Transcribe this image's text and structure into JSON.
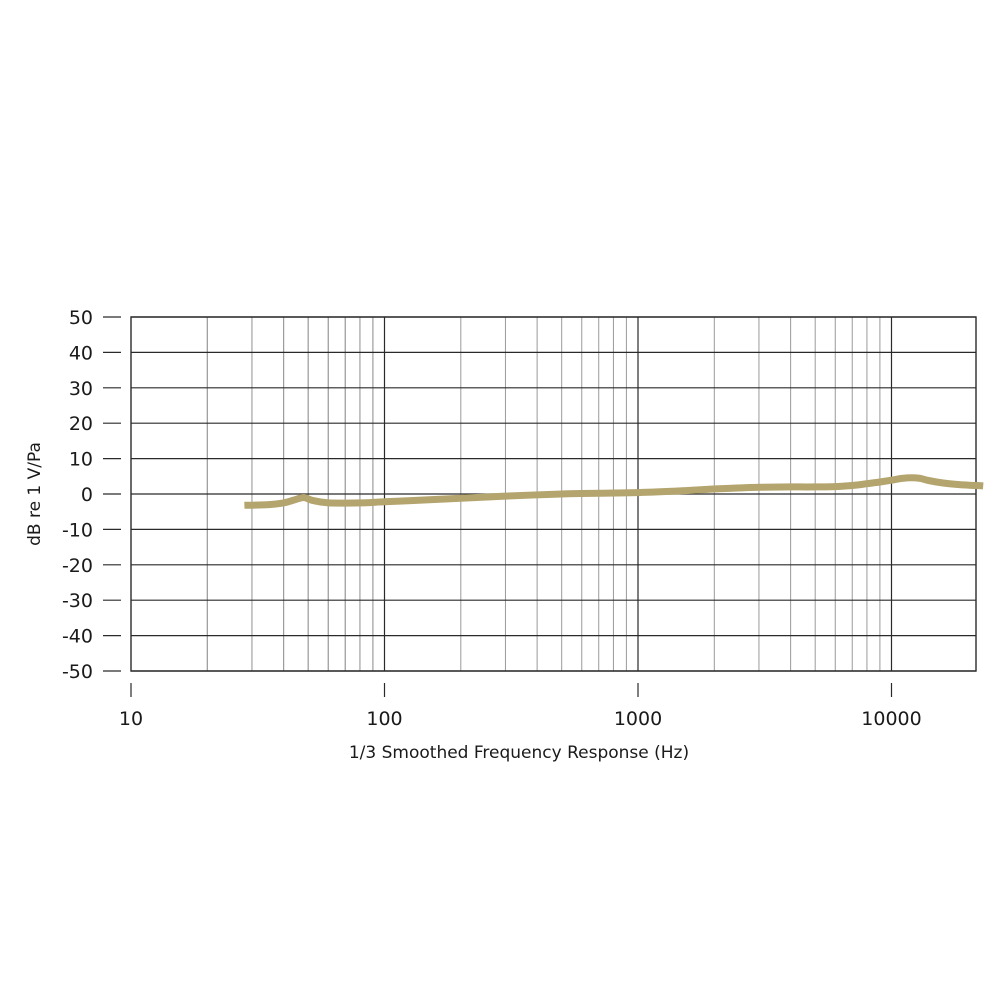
{
  "chart_data": {
    "type": "line",
    "title": "",
    "xlabel": "1/3 Smoothed Frequency Response (Hz)",
    "ylabel": "dB re 1 V/Pa",
    "x_scale": "log",
    "xlim": [
      10,
      20000
    ],
    "ylim": [
      -50,
      50
    ],
    "x_ticks": [
      10,
      100,
      1000,
      10000
    ],
    "x_tick_labels": [
      "10",
      "100",
      "1000",
      "10000"
    ],
    "y_ticks": [
      50,
      40,
      30,
      20,
      10,
      0,
      -10,
      -20,
      -30,
      -40,
      -50
    ],
    "y_tick_labels": [
      "50",
      "40",
      "30",
      "20",
      "10",
      "0",
      "-10",
      "-20",
      "-30",
      "-40",
      "-50"
    ],
    "grid": true,
    "legend": "none",
    "series": [
      {
        "color": "#b4a46e",
        "x": [
          28,
          35,
          40,
          44,
          48,
          52,
          60,
          80,
          100,
          150,
          200,
          300,
          500,
          700,
          1000,
          1500,
          2000,
          3000,
          4000,
          5000,
          6000,
          7000,
          8000,
          9000,
          10000,
          11000,
          12000,
          13000,
          14000,
          16000,
          18000,
          20000,
          23000
        ],
        "y": [
          -3.2,
          -3.0,
          -2.5,
          -1.7,
          -1.0,
          -1.8,
          -2.5,
          -2.5,
          -2.2,
          -1.6,
          -1.2,
          -0.6,
          0.0,
          0.2,
          0.4,
          0.9,
          1.4,
          1.9,
          2.0,
          2.0,
          2.1,
          2.4,
          2.9,
          3.4,
          3.9,
          4.4,
          4.6,
          4.4,
          3.8,
          3.1,
          2.7,
          2.5,
          2.3
        ]
      }
    ]
  }
}
